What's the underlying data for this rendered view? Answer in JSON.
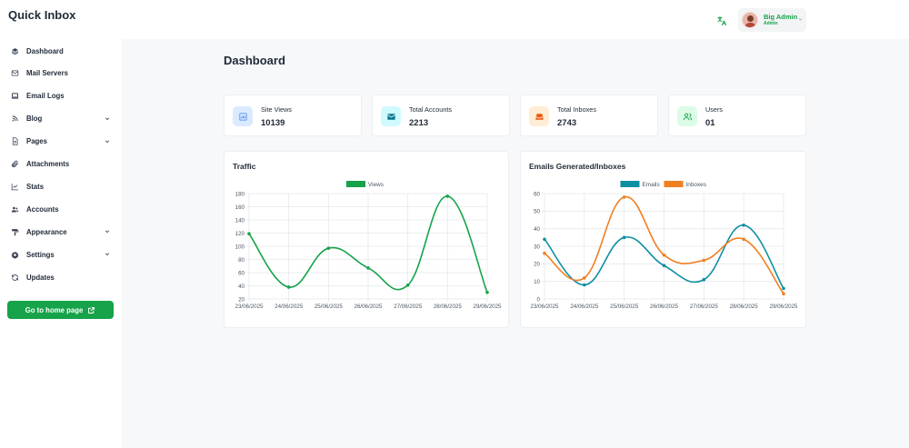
{
  "app": {
    "brand": "Quick Inbox"
  },
  "header": {
    "user_name": "Big Admin",
    "user_role": "Admin"
  },
  "sidebar": {
    "items": [
      {
        "label": "Dashboard",
        "icon": "layers-icon",
        "has_submenu": false
      },
      {
        "label": "Mail Servers",
        "icon": "envelope-icon",
        "has_submenu": false
      },
      {
        "label": "Email Logs",
        "icon": "laptop-icon",
        "has_submenu": false
      },
      {
        "label": "Blog",
        "icon": "rss-icon",
        "has_submenu": true
      },
      {
        "label": "Pages",
        "icon": "file-icon",
        "has_submenu": true
      },
      {
        "label": "Attachments",
        "icon": "paperclip-icon",
        "has_submenu": false
      },
      {
        "label": "Stats",
        "icon": "line-chart-icon",
        "has_submenu": false
      },
      {
        "label": "Accounts",
        "icon": "users-icon",
        "has_submenu": false
      },
      {
        "label": "Appearance",
        "icon": "paint-roller-icon",
        "has_submenu": true
      },
      {
        "label": "Settings",
        "icon": "gear-icon",
        "has_submenu": true
      },
      {
        "label": "Updates",
        "icon": "sync-icon",
        "has_submenu": false
      }
    ],
    "home_button": "Go to home page"
  },
  "main": {
    "title": "Dashboard",
    "stats": [
      {
        "label": "Site Views",
        "value": "10139",
        "icon": "bar-chart-icon",
        "color": "#3b82f6",
        "bg": "#dbeafe"
      },
      {
        "label": "Total Accounts",
        "value": "2213",
        "icon": "envelope-icon",
        "color": "#0e7490",
        "bg": "#cffafe"
      },
      {
        "label": "Total Inboxes",
        "value": "2743",
        "icon": "inbox-icon",
        "color": "#ea580c",
        "bg": "#ffedd5"
      },
      {
        "label": "Users",
        "value": "01",
        "icon": "users-icon",
        "color": "#16a34a",
        "bg": "#dcfce7"
      }
    ]
  },
  "chart_data": [
    {
      "type": "line",
      "title": "Traffic",
      "categories": [
        "23/06/2025",
        "24/06/2025",
        "25/06/2025",
        "26/06/2025",
        "27/06/2025",
        "28/06/2025",
        "29/06/2025"
      ],
      "series": [
        {
          "name": "Views",
          "values": [
            119,
            38,
            97,
            67,
            41,
            176,
            30
          ],
          "color": "#16a34a"
        }
      ],
      "ylim": [
        20,
        180
      ],
      "yticks": [
        20,
        40,
        60,
        80,
        100,
        120,
        140,
        160,
        180
      ],
      "grid": true,
      "legend": "top-center"
    },
    {
      "type": "line",
      "title": "Emails Generated/Inboxes",
      "categories": [
        "23/06/2025",
        "24/06/2025",
        "25/06/2025",
        "26/06/2025",
        "27/06/2025",
        "28/06/2025",
        "29/06/2025"
      ],
      "series": [
        {
          "name": "Emails",
          "values": [
            34,
            8,
            35,
            19,
            11,
            42,
            6
          ],
          "color": "#0e8fa3"
        },
        {
          "name": "Inboxes",
          "values": [
            26,
            12,
            58,
            25,
            22,
            34,
            3
          ],
          "color": "#f07f22"
        }
      ],
      "ylim": [
        0,
        60
      ],
      "yticks": [
        0,
        10,
        20,
        30,
        40,
        50,
        60
      ],
      "grid": true,
      "legend": "top-center"
    }
  ]
}
